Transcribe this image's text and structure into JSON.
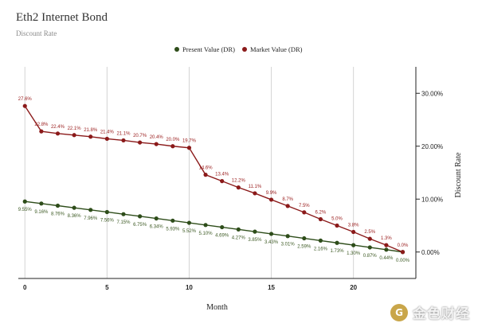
{
  "page": {
    "title": "Eth2 Internet Bond",
    "subtitle": "Discount Rate",
    "watermark": "金色财经"
  },
  "chart_data": {
    "type": "line",
    "title": "Eth2 Internet Bond",
    "subtitle": "Discount Rate",
    "xlabel": "Month",
    "ylabel": "Discount Rate",
    "x": [
      0,
      1,
      2,
      3,
      4,
      5,
      6,
      7,
      8,
      9,
      10,
      11,
      12,
      13,
      14,
      15,
      16,
      17,
      18,
      19,
      20,
      21,
      22,
      23
    ],
    "xticks": [
      0,
      5,
      10,
      15,
      20
    ],
    "xtick_labels": [
      "0",
      "5",
      "10",
      "15",
      "20"
    ],
    "xlim": [
      -0.4,
      23.8
    ],
    "ylim": [
      -5,
      35
    ],
    "yticks": [
      0,
      10,
      20,
      30
    ],
    "ytick_labels": [
      "0.00%",
      "10.00%",
      "20.00%",
      "30.00%"
    ],
    "y_axis_side": "right",
    "grid": "vertical",
    "legend_position": "top-center",
    "series": [
      {
        "name": "Present Value (DR)",
        "color": "#2e4d1a",
        "label_color": "#3d5a24",
        "label_position": "below",
        "values": [
          9.55,
          9.16,
          8.76,
          8.36,
          7.96,
          7.56,
          7.15,
          6.75,
          6.34,
          5.93,
          5.52,
          5.1,
          4.69,
          4.27,
          3.85,
          3.43,
          3.01,
          2.59,
          2.16,
          1.73,
          1.3,
          0.87,
          0.44,
          0.0
        ],
        "labels": [
          "9.55%",
          "9.16%",
          "8.76%",
          "8.36%",
          "7.96%",
          "7.56%",
          "7.15%",
          "6.75%",
          "6.34%",
          "5.93%",
          "5.52%",
          "5.10%",
          "4.69%",
          "4.27%",
          "3.85%",
          "3.43%",
          "3.01%",
          "2.59%",
          "2.16%",
          "1.73%",
          "1.30%",
          "0.87%",
          "0.44%",
          "0.00%"
        ]
      },
      {
        "name": "Market Value (DR)",
        "color": "#8b1a1a",
        "label_color": "#9b2020",
        "label_position": "above",
        "values": [
          27.6,
          22.8,
          22.4,
          22.1,
          21.8,
          21.4,
          21.1,
          20.7,
          20.4,
          20.0,
          19.7,
          14.6,
          13.4,
          12.2,
          11.1,
          9.9,
          8.7,
          7.5,
          6.2,
          5.0,
          3.8,
          2.5,
          1.3,
          0.0
        ],
        "labels": [
          "27.6%",
          "22.8%",
          "22.4%",
          "22.1%",
          "21.8%",
          "21.4%",
          "21.1%",
          "20.7%",
          "20.4%",
          "20.0%",
          "19.7%",
          "14.6%",
          "13.4%",
          "12.2%",
          "11.1%",
          "9.9%",
          "8.7%",
          "7.5%",
          "6.2%",
          "5.0%",
          "3.8%",
          "2.5%",
          "1.3%",
          "0.0%"
        ]
      }
    ]
  }
}
